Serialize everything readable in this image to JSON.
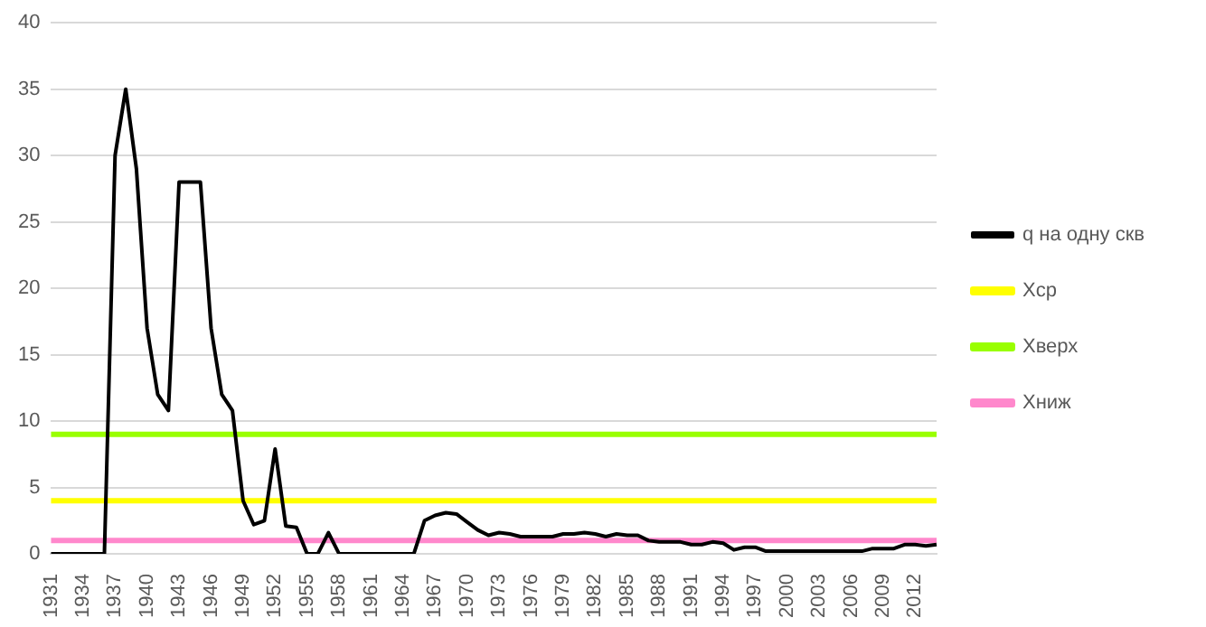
{
  "chart_data": {
    "type": "line",
    "categories": [
      "1931",
      null,
      null,
      "1934",
      null,
      null,
      "1937",
      null,
      null,
      "1940",
      null,
      null,
      "1943",
      null,
      null,
      "1946",
      null,
      null,
      "1949",
      null,
      null,
      "1952",
      null,
      null,
      "1955",
      null,
      null,
      "1958",
      null,
      null,
      "1961",
      null,
      null,
      "1964",
      null,
      null,
      "1967",
      null,
      null,
      "1970",
      null,
      null,
      "1973",
      null,
      null,
      "1976",
      null,
      null,
      "1979",
      null,
      null,
      "1982",
      null,
      null,
      "1985",
      null,
      null,
      "1988",
      null,
      null,
      "1991",
      null,
      null,
      "1994",
      null,
      null,
      "1997",
      null,
      null,
      "2000",
      null,
      null,
      "2003",
      null,
      null,
      "2006",
      null,
      null,
      "2009",
      null,
      null,
      "2012",
      null,
      null
    ],
    "series": [
      {
        "name": "q на одну скв",
        "color": "#000000",
        "values": [
          0,
          0,
          0,
          0,
          0,
          0,
          30,
          35,
          29,
          17,
          12,
          10.8,
          28,
          28,
          28,
          17,
          12,
          10.8,
          4,
          2.2,
          2.5,
          7.9,
          2.1,
          2,
          0,
          0,
          1.6,
          0,
          0,
          0,
          0,
          0,
          0,
          0,
          0,
          2.5,
          2.9,
          3.1,
          3,
          2.4,
          1.8,
          1.4,
          1.6,
          1.5,
          1.3,
          1.3,
          1.3,
          1.3,
          1.5,
          1.5,
          1.6,
          1.5,
          1.3,
          1.5,
          1.4,
          1.4,
          1,
          0.9,
          0.9,
          0.9,
          0.7,
          0.7,
          0.9,
          0.8,
          0.3,
          0.5,
          0.5,
          0.2,
          0.2,
          0.2,
          0.2,
          0.2,
          0.2,
          0.2,
          0.2,
          0.2,
          0.2,
          0.4,
          0.4,
          0.4,
          0.7,
          0.7,
          0.6,
          0.7
        ]
      },
      {
        "name": "Хср",
        "color": "#ffff00",
        "values": [
          4,
          4,
          4,
          4,
          4,
          4,
          4,
          4,
          4,
          4,
          4,
          4,
          4,
          4,
          4,
          4,
          4,
          4,
          4,
          4,
          4,
          4,
          4,
          4,
          4,
          4,
          4,
          4,
          4,
          4,
          4,
          4,
          4,
          4,
          4,
          4,
          4,
          4,
          4,
          4,
          4,
          4,
          4,
          4,
          4,
          4,
          4,
          4,
          4,
          4,
          4,
          4,
          4,
          4,
          4,
          4,
          4,
          4,
          4,
          4,
          4,
          4,
          4,
          4,
          4,
          4,
          4,
          4,
          4,
          4,
          4,
          4,
          4,
          4,
          4,
          4,
          4,
          4,
          4,
          4,
          4,
          4,
          4,
          4
        ]
      },
      {
        "name": "Хверх",
        "color": "#99ff00",
        "values": [
          9,
          9,
          9,
          9,
          9,
          9,
          9,
          9,
          9,
          9,
          9,
          9,
          9,
          9,
          9,
          9,
          9,
          9,
          9,
          9,
          9,
          9,
          9,
          9,
          9,
          9,
          9,
          9,
          9,
          9,
          9,
          9,
          9,
          9,
          9,
          9,
          9,
          9,
          9,
          9,
          9,
          9,
          9,
          9,
          9,
          9,
          9,
          9,
          9,
          9,
          9,
          9,
          9,
          9,
          9,
          9,
          9,
          9,
          9,
          9,
          9,
          9,
          9,
          9,
          9,
          9,
          9,
          9,
          9,
          9,
          9,
          9,
          9,
          9,
          9,
          9,
          9,
          9,
          9,
          9,
          9,
          9,
          9,
          9
        ]
      },
      {
        "name": "Хниж",
        "color": "#ff88cc",
        "values": [
          1,
          1,
          1,
          1,
          1,
          1,
          1,
          1,
          1,
          1,
          1,
          1,
          1,
          1,
          1,
          1,
          1,
          1,
          1,
          1,
          1,
          1,
          1,
          1,
          1,
          1,
          1,
          1,
          1,
          1,
          1,
          1,
          1,
          1,
          1,
          1,
          1,
          1,
          1,
          1,
          1,
          1,
          1,
          1,
          1,
          1,
          1,
          1,
          1,
          1,
          1,
          1,
          1,
          1,
          1,
          1,
          1,
          1,
          1,
          1,
          1,
          1,
          1,
          1,
          1,
          1,
          1,
          1,
          1,
          1,
          1,
          1,
          1,
          1,
          1,
          1,
          1,
          1,
          1,
          1,
          1,
          1,
          1,
          1
        ]
      }
    ],
    "ylim": [
      0,
      40
    ],
    "yticks": [
      0,
      5,
      10,
      15,
      20,
      25,
      30,
      35,
      40
    ],
    "grid": "y",
    "legend": "right",
    "marker": "none",
    "line_style": "solid"
  }
}
